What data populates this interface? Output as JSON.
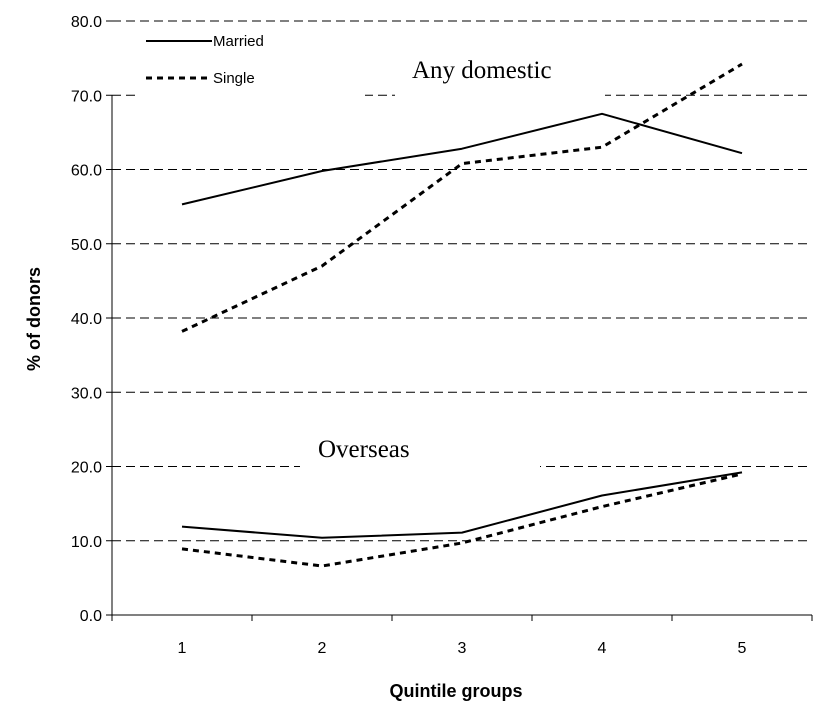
{
  "chart_data": {
    "type": "line",
    "xlabel": "Quintile groups",
    "ylabel": "% of donors",
    "ylim": [
      0,
      80
    ],
    "y_ticks": [
      "0.0",
      "10.0",
      "20.0",
      "30.0",
      "40.0",
      "50.0",
      "60.0",
      "70.0",
      "80.0"
    ],
    "categories": [
      "1",
      "2",
      "3",
      "4",
      "5"
    ],
    "grid": "horizontal dashed",
    "legend": {
      "placement": "top-left",
      "entries": [
        {
          "label": "Married",
          "style": "solid"
        },
        {
          "label": "Single",
          "style": "dashed"
        }
      ]
    },
    "annotations": [
      "Any domestic",
      "Overseas"
    ],
    "series": [
      {
        "name": "Married",
        "group": "Any domestic",
        "style": "solid",
        "values": [
          55.3,
          59.8,
          62.8,
          67.5,
          62.2
        ]
      },
      {
        "name": "Single",
        "group": "Any domestic",
        "style": "dashed",
        "values": [
          38.2,
          47.0,
          60.8,
          63.0,
          74.2
        ]
      },
      {
        "name": "Married",
        "group": "Overseas",
        "style": "solid",
        "values": [
          11.9,
          10.4,
          11.1,
          16.1,
          19.2
        ]
      },
      {
        "name": "Single",
        "group": "Overseas",
        "style": "dashed",
        "values": [
          8.9,
          6.6,
          9.7,
          14.6,
          19.0
        ]
      }
    ]
  }
}
